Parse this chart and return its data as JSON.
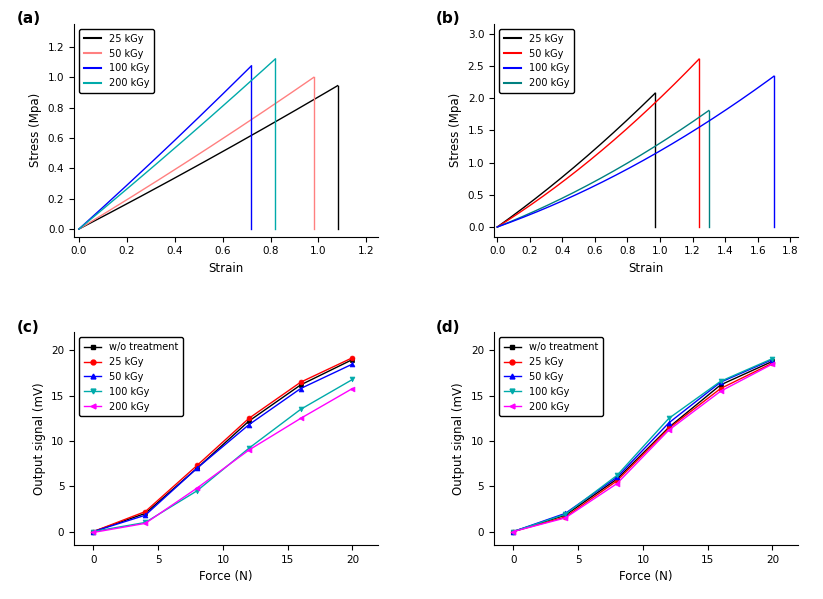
{
  "panel_a": {
    "label": "(a)",
    "xlabel": "Strain",
    "ylabel": "Stress (Mpa)",
    "xlim": [
      -0.02,
      1.25
    ],
    "ylim": [
      -0.05,
      1.35
    ],
    "xticks": [
      0.0,
      0.2,
      0.4,
      0.6,
      0.8,
      1.0,
      1.2
    ],
    "yticks": [
      0.0,
      0.2,
      0.4,
      0.6,
      0.8,
      1.0,
      1.2
    ],
    "legend_labels": [
      "25 kGy",
      "50 kGy",
      "100 kGy",
      "200 kGy"
    ],
    "legend_colors": [
      "#000000",
      "#ff8080",
      "#0000ff",
      "#00aaaa"
    ],
    "curves": [
      {
        "color": "#000000",
        "x_end": 1.08,
        "slope": 0.82,
        "curv": 0.05
      },
      {
        "color": "#ff8080",
        "x_end": 0.98,
        "slope": 0.95,
        "curv": 0.07
      },
      {
        "color": "#0000ff",
        "x_end": 0.72,
        "slope": 1.42,
        "curv": 0.1
      },
      {
        "color": "#00aaaa",
        "x_end": 0.82,
        "slope": 1.3,
        "curv": 0.08
      }
    ]
  },
  "panel_b": {
    "label": "(b)",
    "xlabel": "Strain",
    "ylabel": "Stress (Mpa)",
    "xlim": [
      -0.02,
      1.85
    ],
    "ylim": [
      -0.15,
      3.15
    ],
    "xticks": [
      0.0,
      0.2,
      0.4,
      0.6,
      0.8,
      1.0,
      1.2,
      1.4,
      1.6,
      1.8
    ],
    "yticks": [
      0.0,
      0.5,
      1.0,
      1.5,
      2.0,
      2.5,
      3.0
    ],
    "legend_labels": [
      "25 kGy",
      "50 kGy",
      "100 kGy",
      "200 kGy"
    ],
    "legend_colors": [
      "#000000",
      "#ff0000",
      "#0000ff",
      "#008080"
    ],
    "curves": [
      {
        "color": "#000000",
        "x_end": 0.97,
        "slope": 1.8,
        "curv": 0.35
      },
      {
        "color": "#ff0000",
        "x_end": 1.24,
        "slope": 1.58,
        "curv": 0.42
      },
      {
        "color": "#008080",
        "x_end": 1.3,
        "slope": 1.0,
        "curv": 0.3
      },
      {
        "color": "#0000ff",
        "x_end": 1.7,
        "slope": 0.9,
        "curv": 0.28
      }
    ]
  },
  "panel_c": {
    "label": "(c)",
    "xlabel": "Force (N)",
    "ylabel": "Output signal (mV)",
    "xlim": [
      -1.5,
      22
    ],
    "ylim": [
      -1.5,
      22
    ],
    "xticks": [
      0,
      5,
      10,
      15,
      20
    ],
    "yticks": [
      0,
      5,
      10,
      15,
      20
    ],
    "legend_labels": [
      "w/o treatment",
      "25 kGy",
      "50 kGy",
      "100 kGy",
      "200 kGy"
    ],
    "series": [
      {
        "color": "#000000",
        "marker": "s",
        "x": [
          0,
          4,
          8,
          12,
          16,
          20
        ],
        "y": [
          0.0,
          2.0,
          7.0,
          12.2,
          16.2,
          19.0
        ]
      },
      {
        "color": "#ff0000",
        "marker": "o",
        "x": [
          0,
          4,
          8,
          12,
          16,
          20
        ],
        "y": [
          0.0,
          2.2,
          7.3,
          12.5,
          16.5,
          19.2
        ]
      },
      {
        "color": "#0000ff",
        "marker": "^",
        "x": [
          0,
          4,
          8,
          12,
          16,
          20
        ],
        "y": [
          0.0,
          1.8,
          7.0,
          11.8,
          15.8,
          18.5
        ]
      },
      {
        "color": "#00aaaa",
        "marker": "v",
        "x": [
          0,
          4,
          8,
          12,
          16,
          20
        ],
        "y": [
          0.0,
          1.0,
          4.5,
          9.2,
          13.5,
          16.8
        ]
      },
      {
        "color": "#ff00ff",
        "marker": "<",
        "x": [
          0,
          4,
          8,
          12,
          16,
          20
        ],
        "y": [
          -0.1,
          0.9,
          4.8,
          9.0,
          12.5,
          15.8
        ]
      }
    ]
  },
  "panel_d": {
    "label": "(d)",
    "xlabel": "Force (N)",
    "ylabel": "Output signal (mV)",
    "xlim": [
      -1.5,
      22
    ],
    "ylim": [
      -1.5,
      22
    ],
    "xticks": [
      0,
      5,
      10,
      15,
      20
    ],
    "yticks": [
      0,
      5,
      10,
      15,
      20
    ],
    "legend_labels": [
      "w/o treatment",
      "25 kGy",
      "50 kGy",
      "100 kGy",
      "200 kGy"
    ],
    "series": [
      {
        "color": "#000000",
        "marker": "s",
        "x": [
          0,
          4,
          8,
          12,
          16,
          20
        ],
        "y": [
          0.0,
          1.8,
          5.8,
          11.5,
          16.2,
          18.8
        ]
      },
      {
        "color": "#ff0000",
        "marker": "o",
        "x": [
          0,
          4,
          8,
          12,
          16,
          20
        ],
        "y": [
          0.0,
          1.6,
          5.6,
          11.4,
          15.8,
          18.6
        ]
      },
      {
        "color": "#0000ff",
        "marker": "^",
        "x": [
          0,
          4,
          8,
          12,
          16,
          20
        ],
        "y": [
          0.0,
          2.0,
          6.0,
          12.0,
          16.5,
          19.0
        ]
      },
      {
        "color": "#00aaaa",
        "marker": "v",
        "x": [
          0,
          4,
          8,
          12,
          16,
          20
        ],
        "y": [
          0.0,
          1.9,
          6.2,
          12.5,
          16.6,
          19.1
        ]
      },
      {
        "color": "#ff00ff",
        "marker": "<",
        "x": [
          0,
          4,
          8,
          12,
          16,
          20
        ],
        "y": [
          0.0,
          1.5,
          5.3,
          11.2,
          15.5,
          18.5
        ]
      }
    ]
  }
}
